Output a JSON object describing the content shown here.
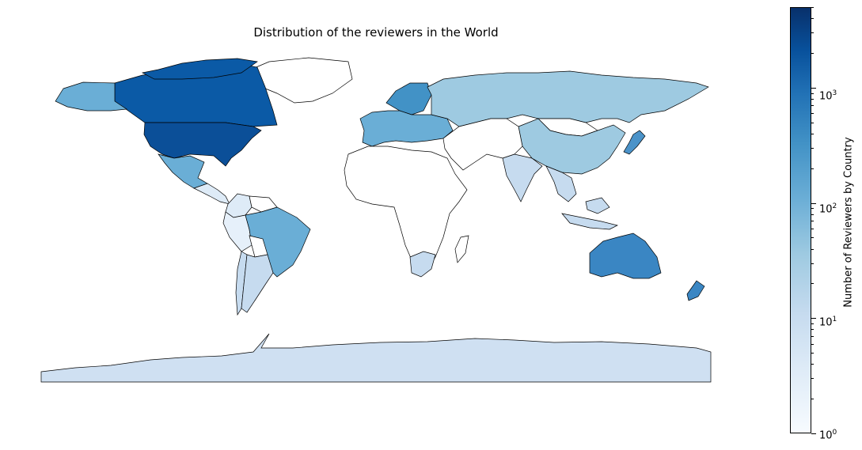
{
  "title": "Distribution of the reviewers in the World",
  "colorbar": {
    "label": "Number of Reviewers by Country",
    "scale": "log",
    "range": [
      1,
      5000
    ],
    "colormap": "Blues",
    "ticks": [
      {
        "base": "10",
        "exp": "0",
        "value": 1
      },
      {
        "base": "10",
        "exp": "1",
        "value": 10
      },
      {
        "base": "10",
        "exp": "2",
        "value": 100
      },
      {
        "base": "10",
        "exp": "3",
        "value": 1000
      }
    ]
  },
  "regions": [
    {
      "name": "Greenland",
      "fill": "#ffffff"
    },
    {
      "name": "Canada",
      "fill": "#0b5aa6"
    },
    {
      "name": "Alaska",
      "fill": "#6aaed6"
    },
    {
      "name": "United States",
      "fill": "#0b4f98"
    },
    {
      "name": "Mexico",
      "fill": "#6aaed6"
    },
    {
      "name": "Central America",
      "fill": "#deebf7"
    },
    {
      "name": "Brazil",
      "fill": "#6aaed6"
    },
    {
      "name": "Colombia",
      "fill": "#deebf7"
    },
    {
      "name": "Peru",
      "fill": "#e6f0fa"
    },
    {
      "name": "Bolivia",
      "fill": "#ffffff"
    },
    {
      "name": "Argentina",
      "fill": "#c6dbef"
    },
    {
      "name": "Chile",
      "fill": "#c6dbef"
    },
    {
      "name": "Venezuela",
      "fill": "#ffffff"
    },
    {
      "name": "Europe",
      "fill": "#6aaed6"
    },
    {
      "name": "Scandinavia",
      "fill": "#4292c6"
    },
    {
      "name": "Russia",
      "fill": "#9ecae1"
    },
    {
      "name": "Mongolia",
      "fill": "#ffffff"
    },
    {
      "name": "China",
      "fill": "#9ecae1"
    },
    {
      "name": "Japan",
      "fill": "#4b93c9"
    },
    {
      "name": "India",
      "fill": "#c6dbef"
    },
    {
      "name": "Middle East",
      "fill": "#ffffff"
    },
    {
      "name": "Africa",
      "fill": "#ffffff"
    },
    {
      "name": "South Africa",
      "fill": "#c6dbef"
    },
    {
      "name": "Australia",
      "fill": "#3a86c3"
    },
    {
      "name": "Southeast Asia",
      "fill": "#c6dbef"
    },
    {
      "name": "Antarctica",
      "fill": "#cfe0f2"
    }
  ]
}
